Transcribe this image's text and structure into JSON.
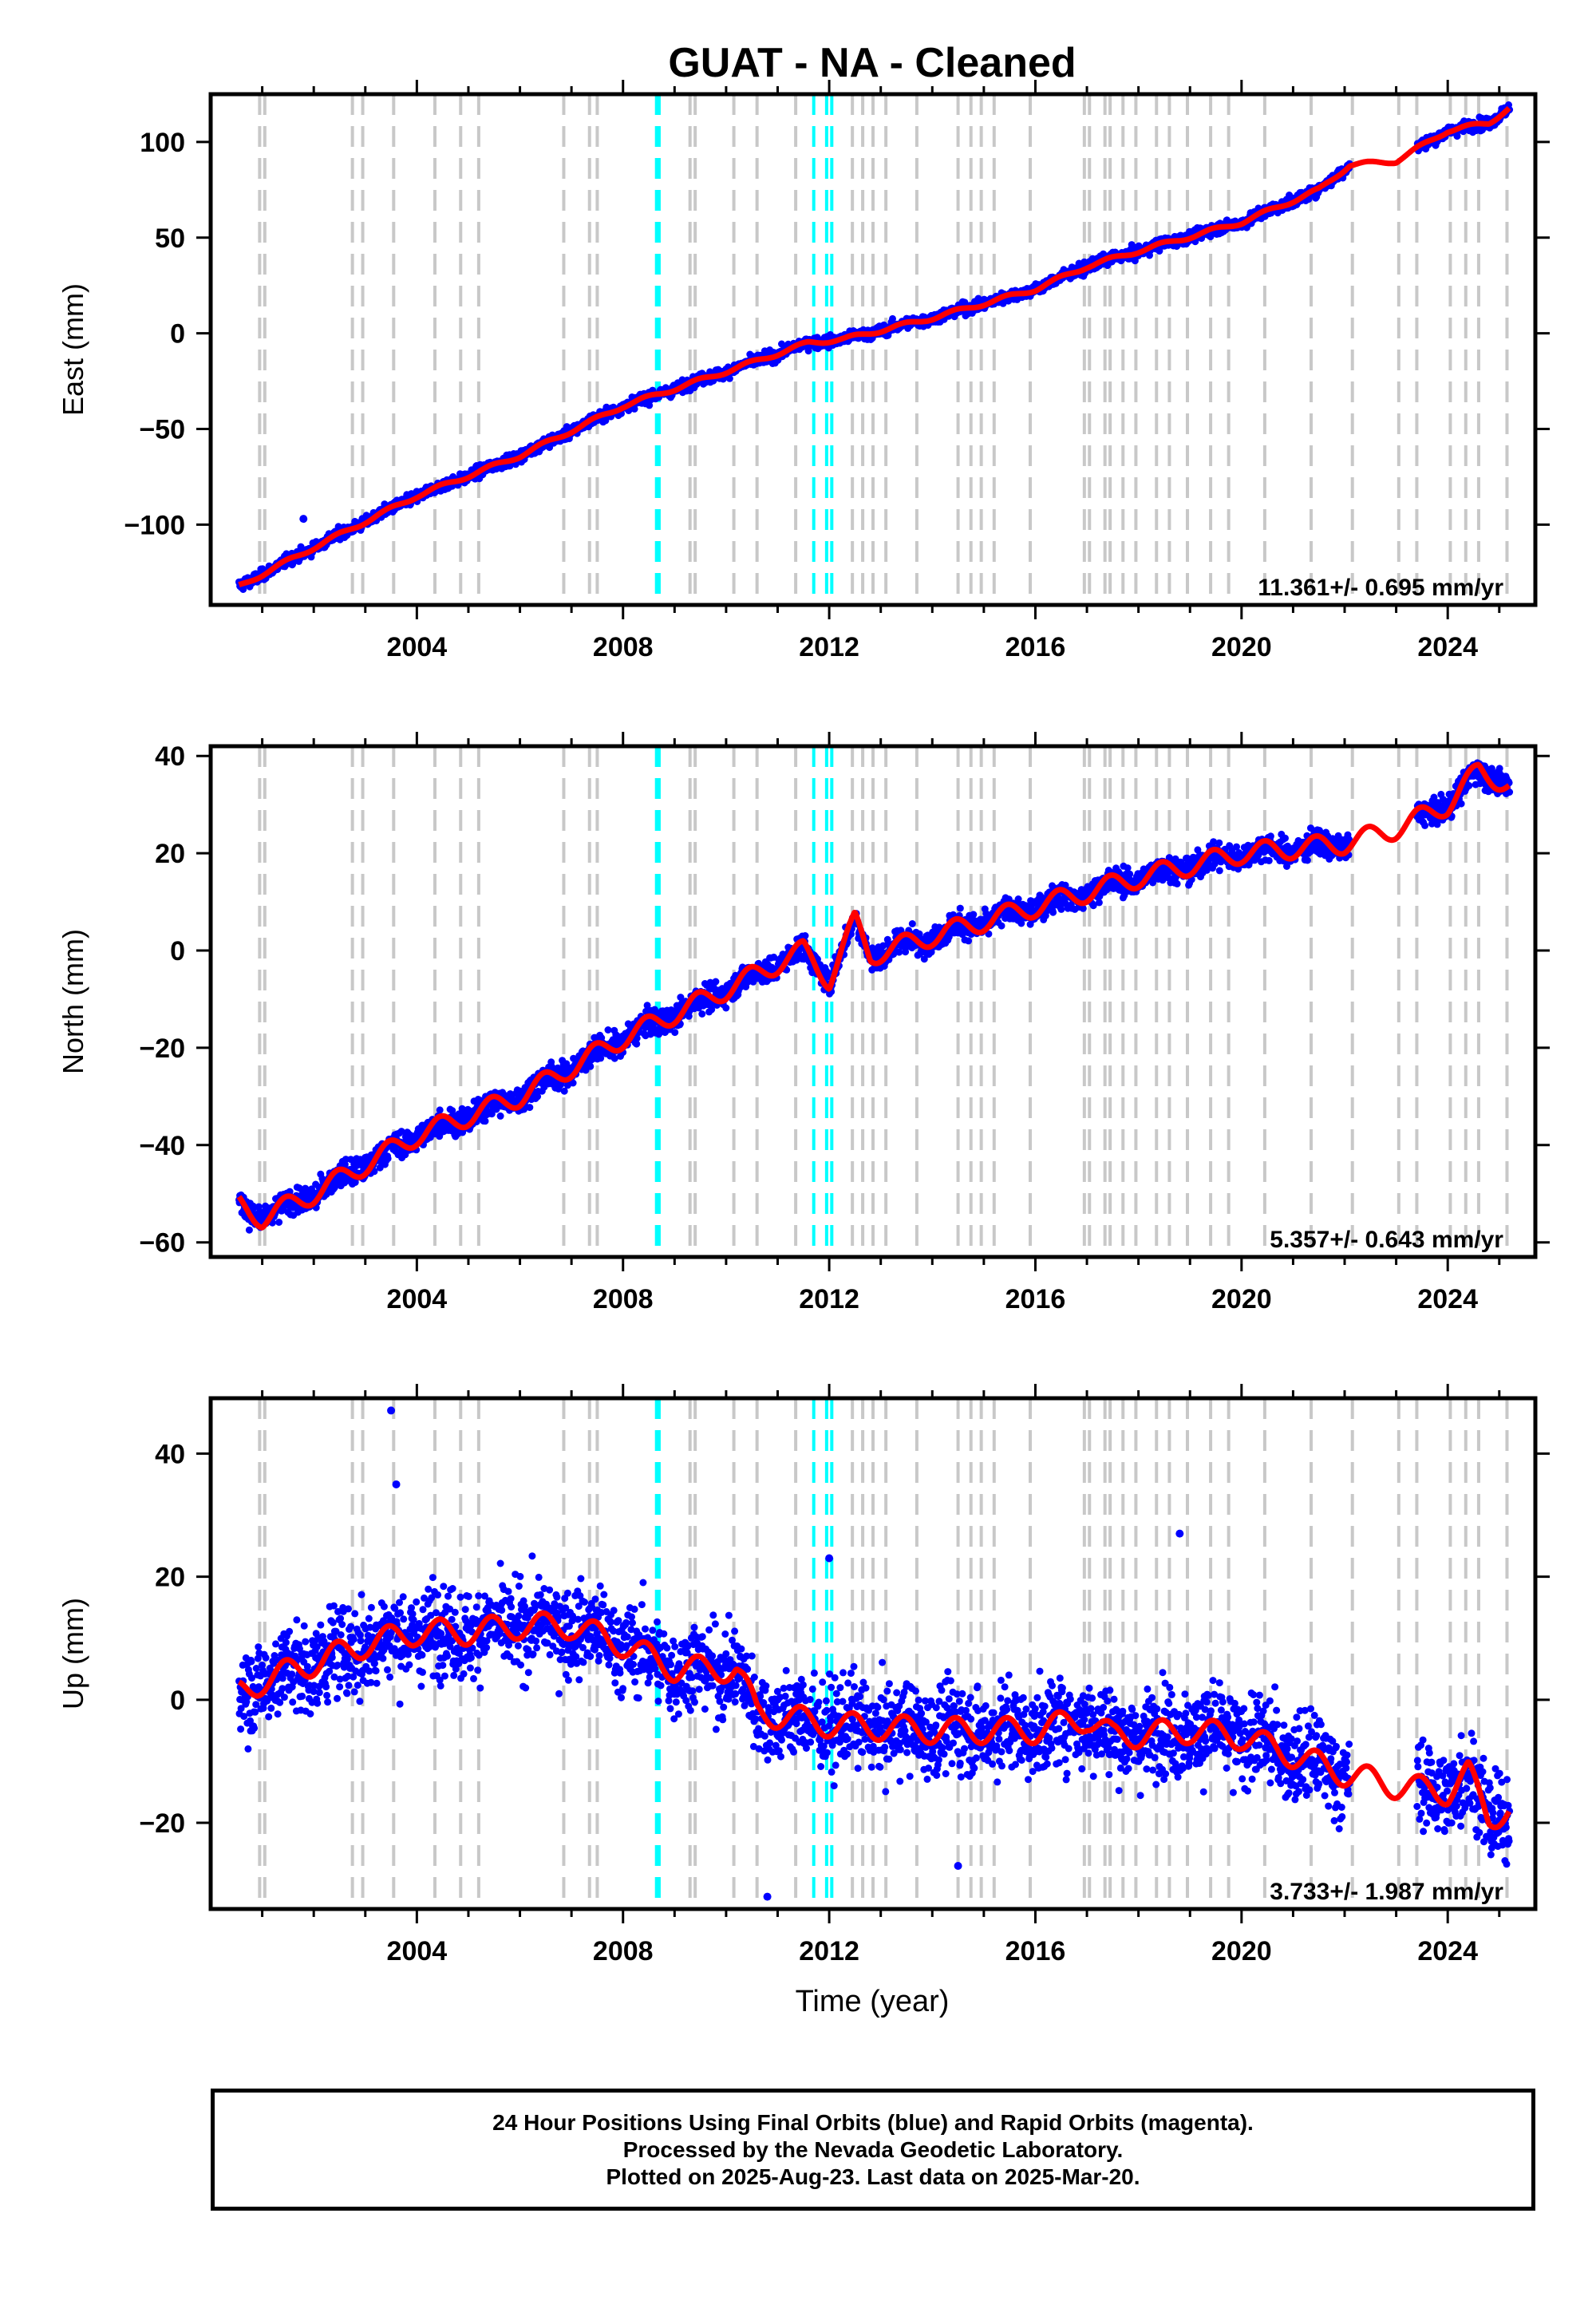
{
  "title": "GUAT  - NA - Cleaned",
  "xlabel": "Time (year)",
  "footer": {
    "line1": "24 Hour Positions Using Final Orbits (blue) and Rapid Orbits (magenta).",
    "line2": "Processed by the Nevada Geodetic Laboratory.",
    "line3": "Plotted on 2025-Aug-23. Last data on 2025-Mar-20."
  },
  "colors": {
    "final_orbits": "#0000ff",
    "model": "#ff0000",
    "equipment_change": "#c8c8c8",
    "earthquake": "#00ffff"
  },
  "chart_data": [
    {
      "type": "scatter",
      "component": "east",
      "ylabel": "East (mm)",
      "rate_label": "11.361+/- 0.695 mm/yr",
      "xlim": [
        2000.0,
        2025.7
      ],
      "ylim": [
        -142,
        125
      ],
      "yticks": [
        -100,
        -50,
        0,
        50,
        100
      ],
      "xticks": [
        2004,
        2008,
        2012,
        2016,
        2020,
        2024
      ],
      "model_knots": [
        [
          2000.5,
          -133
        ],
        [
          2002,
          -112
        ],
        [
          2004,
          -85
        ],
        [
          2006,
          -64
        ],
        [
          2008,
          -38
        ],
        [
          2010,
          -20
        ],
        [
          2011.6,
          -5
        ],
        [
          2012.3,
          -3
        ],
        [
          2014,
          8
        ],
        [
          2016,
          23
        ],
        [
          2017,
          35
        ],
        [
          2018,
          43
        ],
        [
          2020,
          58
        ],
        [
          2021.5,
          75
        ],
        [
          2022.1,
          88
        ],
        [
          2023,
          90
        ],
        [
          2024,
          106
        ],
        [
          2024.8,
          110
        ],
        [
          2025.2,
          118
        ]
      ],
      "scatter_gaps": [
        [
          2022.1,
          2023.4
        ]
      ],
      "scatter_noise": 2.5,
      "seasonal_amplitude": 1.5,
      "outliers": [
        [
          2001.8,
          -97
        ]
      ]
    },
    {
      "type": "scatter",
      "component": "north",
      "ylabel": "North (mm)",
      "rate_label": "5.357+/- 0.643 mm/yr",
      "xlim": [
        2000.0,
        2025.7
      ],
      "ylim": [
        -63,
        42
      ],
      "yticks": [
        -60,
        -40,
        -20,
        0,
        20,
        40
      ],
      "xticks": [
        2004,
        2008,
        2012,
        2016,
        2020,
        2024
      ],
      "model_knots": [
        [
          2000.5,
          -52
        ],
        [
          2001,
          -55
        ],
        [
          2002,
          -50
        ],
        [
          2004,
          -38
        ],
        [
          2006,
          -30
        ],
        [
          2008,
          -18
        ],
        [
          2010,
          -8
        ],
        [
          2011.5,
          0
        ],
        [
          2012,
          -6
        ],
        [
          2012.5,
          6
        ],
        [
          2012.8,
          -1
        ],
        [
          2014,
          3
        ],
        [
          2016,
          9
        ],
        [
          2018,
          15
        ],
        [
          2020,
          20
        ],
        [
          2022,
          22
        ],
        [
          2023,
          25
        ],
        [
          2024,
          30
        ],
        [
          2024.6,
          37
        ],
        [
          2025.2,
          34
        ]
      ],
      "scatter_gaps": [
        [
          2022.1,
          2023.4
        ]
      ],
      "scatter_noise": 2.2,
      "seasonal_amplitude": 3.0,
      "outliers": []
    },
    {
      "type": "scatter",
      "component": "up",
      "ylabel": "Up (mm)",
      "rate_label": "3.733+/- 1.987 mm/yr",
      "xlim": [
        2000.0,
        2025.7
      ],
      "ylim": [
        -34,
        49
      ],
      "yticks": [
        -20,
        0,
        20,
        40
      ],
      "xticks": [
        2004,
        2008,
        2012,
        2016,
        2020,
        2024
      ],
      "model_knots": [
        [
          2000.5,
          1
        ],
        [
          2001,
          3
        ],
        [
          2002,
          6
        ],
        [
          2003,
          9
        ],
        [
          2004,
          11
        ],
        [
          2005,
          11
        ],
        [
          2006,
          12
        ],
        [
          2007,
          12
        ],
        [
          2008,
          9
        ],
        [
          2009,
          5
        ],
        [
          2010.2,
          5
        ],
        [
          2010.6,
          -2
        ],
        [
          2012,
          -4
        ],
        [
          2014,
          -5
        ],
        [
          2016,
          -5
        ],
        [
          2017,
          -3
        ],
        [
          2017.5,
          -6
        ],
        [
          2019,
          -5
        ],
        [
          2020,
          -6
        ],
        [
          2021,
          -9
        ],
        [
          2022,
          -12
        ],
        [
          2023,
          -14
        ],
        [
          2024,
          -15
        ],
        [
          2024.4,
          -12
        ],
        [
          2024.8,
          -19
        ],
        [
          2025.2,
          -18
        ]
      ],
      "scatter_gaps": [
        [
          2022.1,
          2023.4
        ]
      ],
      "scatter_noise": 6.0,
      "seasonal_amplitude": 3.0,
      "outliers": [
        [
          2003.5,
          47
        ],
        [
          2003.6,
          35
        ],
        [
          2010.8,
          -32
        ],
        [
          2012,
          23
        ],
        [
          2014.5,
          -27
        ],
        [
          2018.8,
          27
        ]
      ]
    }
  ],
  "equipment_change_lines": [
    2000.95,
    2001.05,
    2002.75,
    2002.95,
    2003.55,
    2004.35,
    2004.85,
    2005.2,
    2006.85,
    2007.35,
    2007.5,
    2009.3,
    2009.4,
    2010.15,
    2010.6,
    2011.35,
    2012.45,
    2012.65,
    2012.85,
    2013.1,
    2013.7,
    2014.5,
    2014.75,
    2014.95,
    2015.2,
    2015.9,
    2016.95,
    2017.05,
    2017.35,
    2017.45,
    2017.7,
    2017.95,
    2018.35,
    2018.6,
    2018.95,
    2019.4,
    2019.75,
    2020.45,
    2021.35,
    2022.15,
    2023.05,
    2023.4,
    2024.05,
    2024.35,
    2024.6,
    2025.15
  ],
  "earthquake_lines": [
    2008.65,
    2008.7,
    2011.7,
    2011.95,
    2012.05
  ]
}
